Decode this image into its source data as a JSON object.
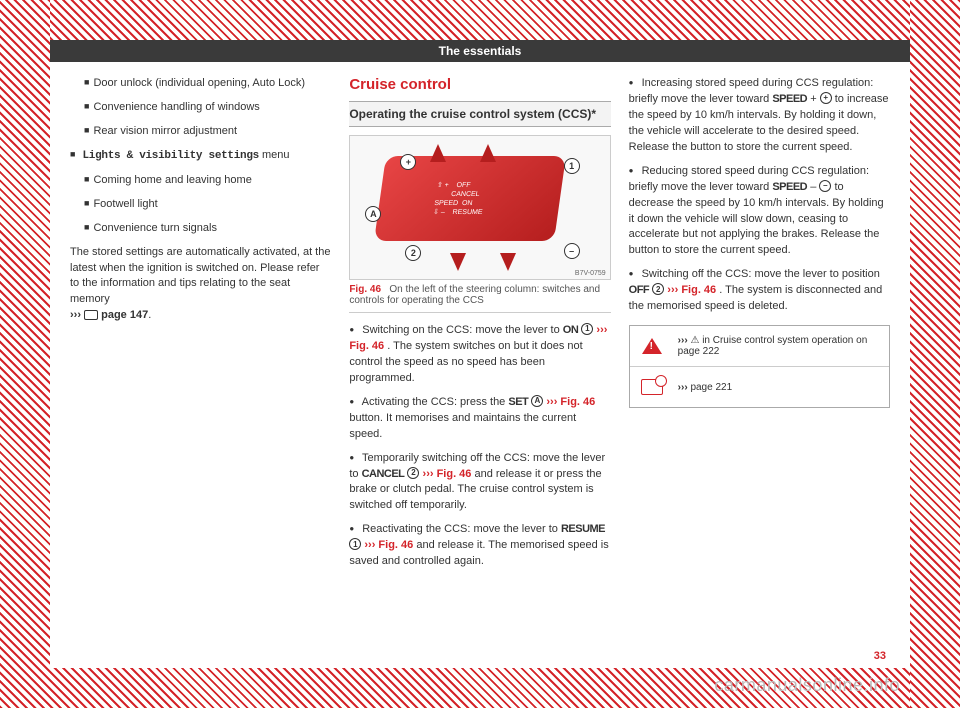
{
  "header": {
    "title": "The essentials"
  },
  "col1": {
    "items": [
      "Door unlock (individual opening, Auto Lock)",
      "Convenience handling of windows",
      "Rear vision mirror adjustment"
    ],
    "menu_label": "Lights & visibility settings",
    "menu_suffix": "menu",
    "subitems": [
      "Coming home and leaving home",
      "Footwell light",
      "Convenience turn signals"
    ],
    "para": "The stored settings are automatically activated, at the latest when the ignition is switched on. Please refer to the information and tips relating to the seat memory",
    "ref": "››› ",
    "ref_page": "page 147"
  },
  "col2": {
    "section_title": "Cruise control",
    "sub_heading": "Operating the cruise control system (CCS)*",
    "img_code": "B7V-0759",
    "fig_label": "Fig. 46",
    "fig_caption": "On the left of the steering column: switches and controls for operating the CCS",
    "lever_lines": [
      "OFF",
      "CANCEL",
      "ON",
      "RESUME",
      "SPEED"
    ],
    "b1_a": "Switching on the CCS: move the lever to ",
    "b1_on": "ON",
    "b1_c": ". The system switches on but it does not control the speed as no speed has been programmed.",
    "b2_a": "Activating the CCS: press the ",
    "b2_set": "SET",
    "b2_c": " button. It memorises and maintains the current speed.",
    "b3_a": "Temporarily switching off the CCS: move the lever to ",
    "b3_cancel": "CANCEL",
    "b3_c": " and release it or press the brake or clutch pedal. The cruise control system is switched off temporarily.",
    "b4_a": "Reactivating the CCS: move the lever to ",
    "b4_resume": "RESUME",
    "b4_c": " and release it. The memorised speed is saved and controlled again."
  },
  "col3": {
    "b5_a": "Increasing stored speed during CCS regulation: briefly move the lever toward ",
    "b5_speed": "SPEED",
    "b5_plus": " + ",
    "b5_c": "to increase the speed by 10 km/h intervals. By holding it down, the vehicle will accelerate to the desired speed. Release the button to store the current speed.",
    "b6_a": "Reducing stored speed during CCS regulation: briefly move the lever toward ",
    "b6_speed": "SPEED",
    "b6_minus": " – ",
    "b6_c": "to decrease the speed by 10 km/h intervals. By holding it down the vehicle will slow down, ceasing to accelerate but not applying the brakes. Release the button to store the current speed.",
    "b7_a": "Switching off the CCS: move the lever to position ",
    "b7_off": "OFF",
    "b7_c": ". The system is disconnected and the memorised speed is deleted.",
    "ref1_a": "››› ",
    "ref1_b": "in Cruise control system operation on page 222",
    "ref2_a": "››› ",
    "ref2_b": "page 221"
  },
  "figref": "››› Fig. 46",
  "page_number": "33",
  "watermark": "carmanualsonline.info",
  "markers": {
    "plus": "+",
    "minus": "–",
    "one": "1",
    "two": "2",
    "A": "A"
  },
  "colors": {
    "brand_red": "#d4242a",
    "text": "#333333",
    "header_bg": "#3a3a3a"
  }
}
